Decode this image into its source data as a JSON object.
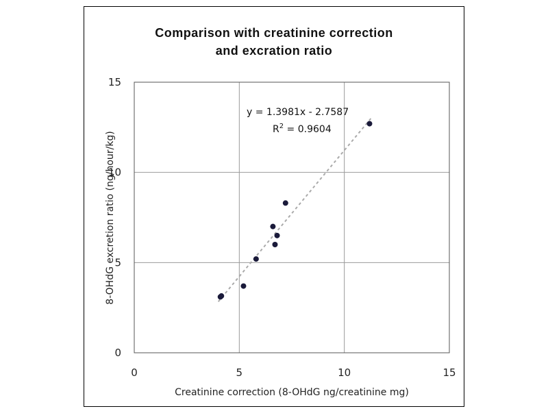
{
  "chart_data": {
    "type": "scatter",
    "title_line1": "Comparison with creatinine correction",
    "title_line2": "and excration ratio",
    "xlabel": "Creatinine correction (8-OHdG ng/creatinine mg)",
    "ylabel": "8-OHdG excretion ratio (ng/hour/kg)",
    "xlim": [
      0,
      15
    ],
    "ylim": [
      0,
      15
    ],
    "xticks": [
      "0",
      "5",
      "10",
      "15"
    ],
    "yticks": [
      "0",
      "5",
      "10",
      "15"
    ],
    "grid": true,
    "points": [
      {
        "x": 4.1,
        "y": 3.1
      },
      {
        "x": 4.15,
        "y": 3.15
      },
      {
        "x": 5.2,
        "y": 3.7
      },
      {
        "x": 5.8,
        "y": 5.2
      },
      {
        "x": 6.6,
        "y": 7.0
      },
      {
        "x": 6.7,
        "y": 6.0
      },
      {
        "x": 6.8,
        "y": 6.5
      },
      {
        "x": 7.2,
        "y": 8.3
      },
      {
        "x": 11.2,
        "y": 12.7
      }
    ],
    "trendline": {
      "slope": 1.3981,
      "intercept": -2.7587,
      "x_range": [
        4.0,
        11.3
      ],
      "equation": "y = 1.3981x - 2.7587",
      "r2_prefix": "R",
      "r2_sup": "2",
      "r2_value": " = 0.9604"
    }
  }
}
